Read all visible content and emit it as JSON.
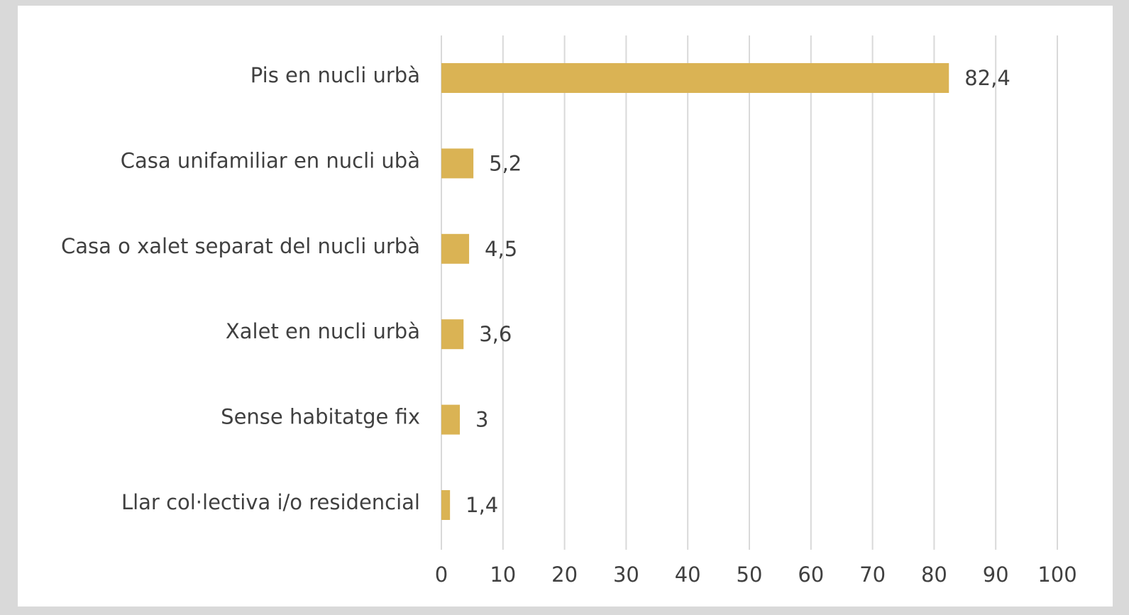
{
  "chart_data": {
    "type": "bar",
    "orientation": "horizontal",
    "categories": [
      "Pis en nucli urbà",
      "Casa unifamiliar en nucli ubà",
      "Casa o xalet separat del nucli urbà",
      "Xalet en nucli urbà",
      "Sense habitatge fix",
      "Llar col·lectiva i/o residencial"
    ],
    "values": [
      82.4,
      5.2,
      4.5,
      3.6,
      3,
      1.4
    ],
    "value_labels": [
      "82,4",
      "5,2",
      "4,5",
      "3,6",
      "3",
      "1,4"
    ],
    "color": "#dab354",
    "xlim": [
      0,
      100
    ],
    "xticks": [
      0,
      10,
      20,
      30,
      40,
      50,
      60,
      70,
      80,
      90,
      100
    ],
    "grid": true
  }
}
